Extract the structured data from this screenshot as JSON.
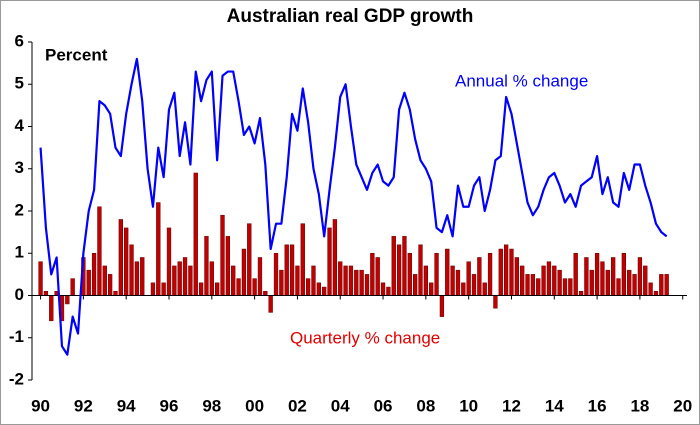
{
  "chart_data": {
    "type": "bar-line",
    "title": "Australian real GDP growth",
    "y_label": "Percent",
    "annotations": [
      "Annual % change",
      "Quarterly % change"
    ],
    "x": [
      1990,
      1990.25,
      1990.5,
      1990.75,
      1991,
      1991.25,
      1991.5,
      1991.75,
      1992,
      1992.25,
      1992.5,
      1992.75,
      1993,
      1993.25,
      1993.5,
      1993.75,
      1994,
      1994.25,
      1994.5,
      1994.75,
      1995,
      1995.25,
      1995.5,
      1995.75,
      1996,
      1996.25,
      1996.5,
      1996.75,
      1997,
      1997.25,
      1997.5,
      1997.75,
      1998,
      1998.25,
      1998.5,
      1998.75,
      1999,
      1999.25,
      1999.5,
      1999.75,
      2000,
      2000.25,
      2000.5,
      2000.75,
      2001,
      2001.25,
      2001.5,
      2001.75,
      2002,
      2002.25,
      2002.5,
      2002.75,
      2003,
      2003.25,
      2003.5,
      2003.75,
      2004,
      2004.25,
      2004.5,
      2004.75,
      2005,
      2005.25,
      2005.5,
      2005.75,
      2006,
      2006.25,
      2006.5,
      2006.75,
      2007,
      2007.25,
      2007.5,
      2007.75,
      2008,
      2008.25,
      2008.5,
      2008.75,
      2009,
      2009.25,
      2009.5,
      2009.75,
      2010,
      2010.25,
      2010.5,
      2010.75,
      2011,
      2011.25,
      2011.5,
      2011.75,
      2012,
      2012.25,
      2012.5,
      2012.75,
      2013,
      2013.25,
      2013.5,
      2013.75,
      2014,
      2014.25,
      2014.5,
      2014.75,
      2015,
      2015.25,
      2015.5,
      2015.75,
      2016,
      2016.25,
      2016.5,
      2016.75,
      2017,
      2017.25,
      2017.5,
      2017.75,
      2018,
      2018.25,
      2018.5,
      2018.75,
      2019,
      2019.25
    ],
    "series": [
      {
        "name": "Quarterly % change",
        "kind": "bar",
        "color": "#c00000",
        "values": [
          0.8,
          0.1,
          -0.6,
          0.1,
          -0.6,
          -0.2,
          0.4,
          0.0,
          0.9,
          0.6,
          1.0,
          2.1,
          0.7,
          0.5,
          0.1,
          1.8,
          1.6,
          1.2,
          0.8,
          0.9,
          0.0,
          0.3,
          2.2,
          0.3,
          1.6,
          0.7,
          0.8,
          0.9,
          0.7,
          2.9,
          0.3,
          1.4,
          0.8,
          0.3,
          1.9,
          1.4,
          0.7,
          0.4,
          1.1,
          1.7,
          0.4,
          0.9,
          0.1,
          -0.4,
          1.0,
          0.6,
          1.2,
          1.2,
          0.7,
          1.7,
          0.4,
          0.7,
          0.3,
          0.2,
          1.6,
          1.8,
          0.8,
          0.7,
          0.7,
          0.6,
          0.6,
          0.5,
          1.0,
          0.9,
          0.3,
          0.2,
          1.4,
          1.2,
          1.4,
          1.0,
          0.5,
          1.2,
          0.7,
          0.3,
          1.0,
          -0.5,
          1.1,
          0.7,
          0.6,
          0.3,
          0.8,
          0.5,
          0.9,
          0.3,
          1.0,
          -0.3,
          1.1,
          1.2,
          1.1,
          0.9,
          0.7,
          0.5,
          0.5,
          0.4,
          0.7,
          0.8,
          0.7,
          0.6,
          0.4,
          0.4,
          1.0,
          0.1,
          0.9,
          0.6,
          1.0,
          0.8,
          0.6,
          0.9,
          0.4,
          1.0,
          0.6,
          0.5,
          0.9,
          0.7,
          0.3,
          0.1,
          0.5,
          0.5
        ]
      },
      {
        "name": "Annual % change",
        "kind": "line",
        "color": "#0000ff",
        "values": [
          3.5,
          1.6,
          0.5,
          0.9,
          -1.2,
          -1.4,
          -0.5,
          -0.9,
          1.0,
          2.0,
          2.5,
          4.6,
          4.5,
          4.3,
          3.5,
          3.3,
          4.3,
          5.0,
          5.6,
          4.6,
          3.0,
          2.1,
          3.5,
          2.8,
          4.4,
          4.8,
          3.3,
          4.1,
          3.1,
          5.3,
          4.6,
          5.1,
          5.3,
          3.2,
          5.2,
          5.3,
          5.3,
          4.6,
          3.8,
          4.0,
          3.6,
          4.2,
          3.1,
          1.1,
          1.7,
          1.7,
          2.8,
          4.3,
          3.9,
          4.9,
          4.1,
          3.0,
          2.4,
          1.4,
          2.5,
          3.5,
          4.7,
          5.0,
          4.0,
          3.1,
          2.8,
          2.5,
          2.9,
          3.1,
          2.7,
          2.6,
          2.8,
          4.4,
          4.8,
          4.4,
          3.7,
          3.2,
          3.0,
          2.7,
          1.6,
          1.5,
          1.9,
          1.4,
          2.6,
          2.1,
          2.1,
          2.6,
          2.8,
          2.0,
          2.5,
          3.2,
          3.3,
          4.7,
          4.3,
          3.6,
          2.9,
          2.2,
          1.9,
          2.1,
          2.5,
          2.8,
          2.9,
          2.6,
          2.2,
          2.4,
          2.1,
          2.6,
          2.7,
          2.8,
          3.3,
          2.4,
          2.8,
          2.2,
          2.1,
          2.9,
          2.5,
          3.1,
          3.1,
          2.6,
          2.2,
          1.7,
          1.5,
          1.4
        ]
      }
    ],
    "xlim": [
      1989.6,
      2020.2
    ],
    "xticks": [
      {
        "value": 1990,
        "label": "90"
      },
      {
        "value": 1992,
        "label": "92"
      },
      {
        "value": 1994,
        "label": "94"
      },
      {
        "value": 1996,
        "label": "96"
      },
      {
        "value": 1998,
        "label": "98"
      },
      {
        "value": 2000,
        "label": "00"
      },
      {
        "value": 2002,
        "label": "02"
      },
      {
        "value": 2004,
        "label": "04"
      },
      {
        "value": 2006,
        "label": "06"
      },
      {
        "value": 2008,
        "label": "08"
      },
      {
        "value": 2010,
        "label": "10"
      },
      {
        "value": 2012,
        "label": "12"
      },
      {
        "value": 2014,
        "label": "14"
      },
      {
        "value": 2016,
        "label": "16"
      },
      {
        "value": 2018,
        "label": "18"
      },
      {
        "value": 2020,
        "label": "20"
      }
    ],
    "ylim": [
      -2,
      6
    ],
    "yticks": [
      -2,
      -1,
      0,
      1,
      2,
      3,
      4,
      5,
      6
    ],
    "grid": false
  }
}
